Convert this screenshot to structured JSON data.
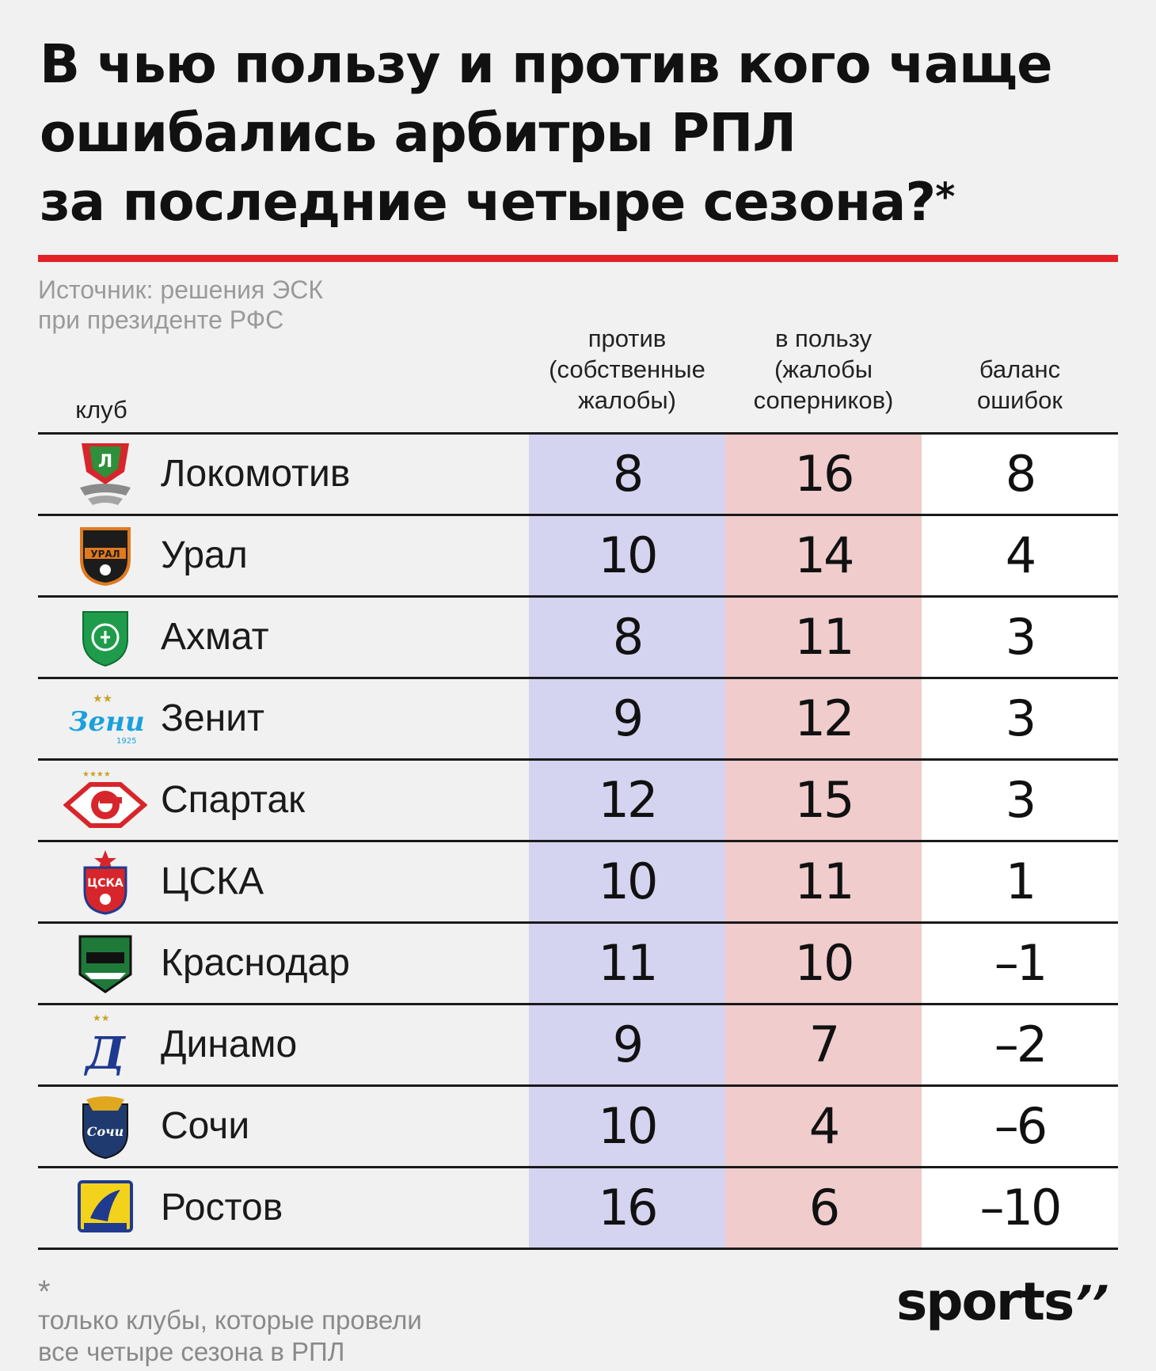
{
  "title": {
    "line1": "В чью пользу и против кого чаще",
    "line2": "ошибались арбитры РПЛ",
    "line3": "за последние четыре сезона?",
    "asterisk": "*"
  },
  "source": {
    "line1": "Источник: решения ЭСК",
    "line2": "при президенте РФС"
  },
  "headers": {
    "club": "клуб",
    "against": [
      "против",
      "(собственные",
      "жалобы)"
    ],
    "favor": [
      "в пользу",
      "(жалобы",
      "соперников)"
    ],
    "balance": [
      "баланс",
      "ошибок"
    ]
  },
  "colors": {
    "against_col": "#d4d4f0",
    "favor_col": "#f0cccc",
    "balance_col": "#ffffff",
    "accent_line": "#e32227"
  },
  "chart_data": {
    "type": "table",
    "columns": [
      "клуб",
      "против (собственные жалобы)",
      "в пользу (жалобы соперников)",
      "баланс ошибок"
    ],
    "rows": [
      {
        "club": "Локомотив",
        "logo": "lokomotiv-logo-icon",
        "against": "8",
        "favor": "16",
        "balance": "8"
      },
      {
        "club": "Урал",
        "logo": "ural-logo-icon",
        "against": "10",
        "favor": "14",
        "balance": "4"
      },
      {
        "club": "Ахмат",
        "logo": "akhmat-logo-icon",
        "against": "8",
        "favor": "11",
        "balance": "3"
      },
      {
        "club": "Зенит",
        "logo": "zenit-logo-icon",
        "against": "9",
        "favor": "12",
        "balance": "3"
      },
      {
        "club": "Спартак",
        "logo": "spartak-logo-icon",
        "against": "12",
        "favor": "15",
        "balance": "3"
      },
      {
        "club": "ЦСКА",
        "logo": "cska-logo-icon",
        "against": "10",
        "favor": "11",
        "balance": "1"
      },
      {
        "club": "Краснодар",
        "logo": "krasnodar-logo-icon",
        "against": "11",
        "favor": "10",
        "balance": "–1"
      },
      {
        "club": "Динамо",
        "logo": "dynamo-logo-icon",
        "against": "9",
        "favor": "7",
        "balance": "–2"
      },
      {
        "club": "Сочи",
        "logo": "sochi-logo-icon",
        "against": "10",
        "favor": "4",
        "balance": "–6"
      },
      {
        "club": "Ростов",
        "logo": "rostov-logo-icon",
        "against": "16",
        "favor": "6",
        "balance": "–10"
      }
    ]
  },
  "footnote": {
    "star": "*",
    "line1": "только клубы, которые провели",
    "line2": "все четыре сезона в РПЛ"
  },
  "brand": {
    "text": "sports",
    "mark": "’’"
  }
}
